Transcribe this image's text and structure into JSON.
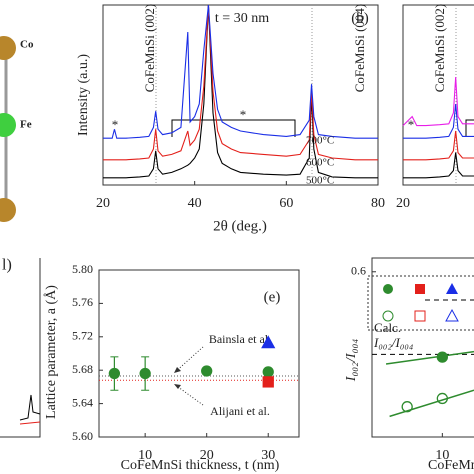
{
  "structure": {
    "labels": [
      "Co",
      "Fe"
    ]
  },
  "panel_d": {
    "label": "l)"
  },
  "chart_data": [
    {
      "type": "line",
      "panel_label": "(b)",
      "annotation": "t = 30 nm",
      "peak_labels": [
        "CoFeMnSi (002)",
        "CoFeMnSi (004)"
      ],
      "asterisks": [
        "*",
        "*"
      ],
      "xlabel": "2θ (deg.)",
      "ylabel": "Intensity (a.u.)",
      "xlim": [
        20,
        80
      ],
      "xticks": [
        20,
        40,
        60,
        80
      ],
      "ylim": [
        0,
        100
      ],
      "x": [
        20,
        22,
        22.5,
        23,
        25,
        28,
        30,
        31,
        31.5,
        32,
        33,
        35,
        37,
        38.5,
        39,
        40,
        41,
        42,
        43,
        44,
        45,
        46,
        48,
        50,
        55,
        60,
        63,
        65,
        65.5,
        66,
        67,
        70,
        75,
        80
      ],
      "series": [
        {
          "name": "500°C",
          "color": "#000000",
          "values": [
            4,
            4,
            4,
            4,
            4,
            4.5,
            5,
            9,
            19,
            9,
            6,
            7,
            9,
            11,
            12,
            15,
            20,
            45,
            100,
            40,
            18,
            12,
            9,
            7,
            6,
            5.5,
            6,
            15,
            50,
            20,
            7,
            4.5,
            4,
            4
          ]
        },
        {
          "name": "600°C",
          "color": "#e3201b",
          "values": [
            14,
            14,
            14,
            14,
            14,
            14.5,
            15,
            20,
            31,
            19,
            16,
            17,
            19,
            30,
            22,
            25,
            31,
            55,
            100,
            52,
            30,
            23,
            20,
            18,
            17,
            16,
            17,
            25,
            53,
            28,
            17,
            15,
            14,
            14
          ]
        },
        {
          "name": "700°C",
          "color": "#1a2ee6",
          "values": [
            26,
            26,
            31,
            26,
            26,
            26.5,
            27,
            32,
            41,
            31,
            28,
            29,
            32,
            85,
            35,
            38,
            45,
            75,
            100,
            62,
            42,
            35,
            32,
            30,
            28,
            27,
            28,
            36,
            56,
            38,
            28,
            27,
            26,
            26
          ]
        }
      ]
    },
    {
      "type": "line",
      "peak_labels": [
        "CoFeMnSi (002)"
      ],
      "asterisks": [
        "*"
      ],
      "xlim": [
        20,
        35.5
      ],
      "xticks": [
        20
      ],
      "ylim": [
        0,
        100
      ],
      "x": [
        20,
        22,
        23,
        25,
        28,
        30,
        31,
        31.5,
        32,
        33,
        34,
        35.5
      ],
      "series": [
        {
          "color": "#000000",
          "values": [
            4,
            4,
            4,
            4,
            4.5,
            5,
            8,
            18,
            8,
            5,
            5,
            5
          ]
        },
        {
          "color": "#e3201b",
          "values": [
            14,
            14,
            14,
            14,
            14.5,
            15,
            19,
            30,
            18,
            15,
            15,
            15
          ]
        },
        {
          "color": "#1a2ee6",
          "values": [
            26,
            26,
            26,
            26,
            26.5,
            27,
            32,
            45,
            31,
            27,
            27,
            27
          ]
        },
        {
          "color": "#e81ee8",
          "values": [
            33,
            38,
            33,
            33,
            33.5,
            34,
            40,
            60,
            38,
            34,
            34,
            34
          ]
        }
      ]
    },
    {
      "type": "scatter",
      "panel_label": "(e)",
      "xlabel": "CoFeMnSi thickness, t (nm)",
      "ylabel": "Lattice parameter, a (Å)",
      "xlim": [
        2.5,
        35
      ],
      "xticks": [
        10,
        20,
        30
      ],
      "ylim": [
        5.6,
        5.8
      ],
      "yticks": [
        {
          "value": 5.6,
          "label": "5.60"
        },
        5.64,
        5.68,
        5.72,
        5.76,
        {
          "value": 5.8,
          "label": "5.80"
        }
      ],
      "series": [
        {
          "color": "#2e8b2e",
          "marker": "circle",
          "filled": true,
          "x": [
            5,
            10,
            20,
            30
          ],
          "values": [
            5.676,
            5.676,
            5.679,
            5.678
          ],
          "errors": [
            0.02,
            0.02,
            null,
            null
          ]
        },
        {
          "color": "#e3201b",
          "marker": "square",
          "filled": true,
          "x": [
            30
          ],
          "values": [
            5.666
          ]
        },
        {
          "color": "#1a2ee6",
          "marker": "triangle",
          "filled": true,
          "x": [
            30
          ],
          "values": [
            5.713
          ]
        }
      ],
      "references": [
        {
          "name": "Bainsla et al.",
          "value": 5.673,
          "color": "#555555"
        },
        {
          "name": "Alijani et al.",
          "value": 5.668,
          "color": "#e3201b"
        }
      ]
    },
    {
      "type": "scatter",
      "xlabel": "CoFeMn",
      "ylabel": "I₀₀₂/I₀₀₄",
      "xlim": [
        0,
        14.5
      ],
      "xticks": [
        10
      ],
      "ylim": [
        0,
        0.65
      ],
      "yticks": [
        0.6
      ],
      "series": [
        {
          "color": "#2e8b2e",
          "marker": "circle",
          "filled": true,
          "x": [
            10
          ],
          "values": [
            0.29
          ]
        },
        {
          "color": "#2e8b2e",
          "marker": "circle",
          "filled": false,
          "x": [
            5,
            10
          ],
          "values": [
            0.11,
            0.14
          ]
        }
      ],
      "fits": [
        {
          "color": "#2e8b2e",
          "x": [
            2,
            14.5
          ],
          "values": [
            0.265,
            0.31
          ]
        },
        {
          "color": "#2e8b2e",
          "x": [
            2.5,
            14.5
          ],
          "values": [
            0.075,
            0.17
          ]
        }
      ],
      "references": [
        {
          "name": "Calc.",
          "sublabel": "I₀₀₂/I₀₀₄",
          "value": 0.3,
          "color": "#000000"
        }
      ]
    }
  ]
}
